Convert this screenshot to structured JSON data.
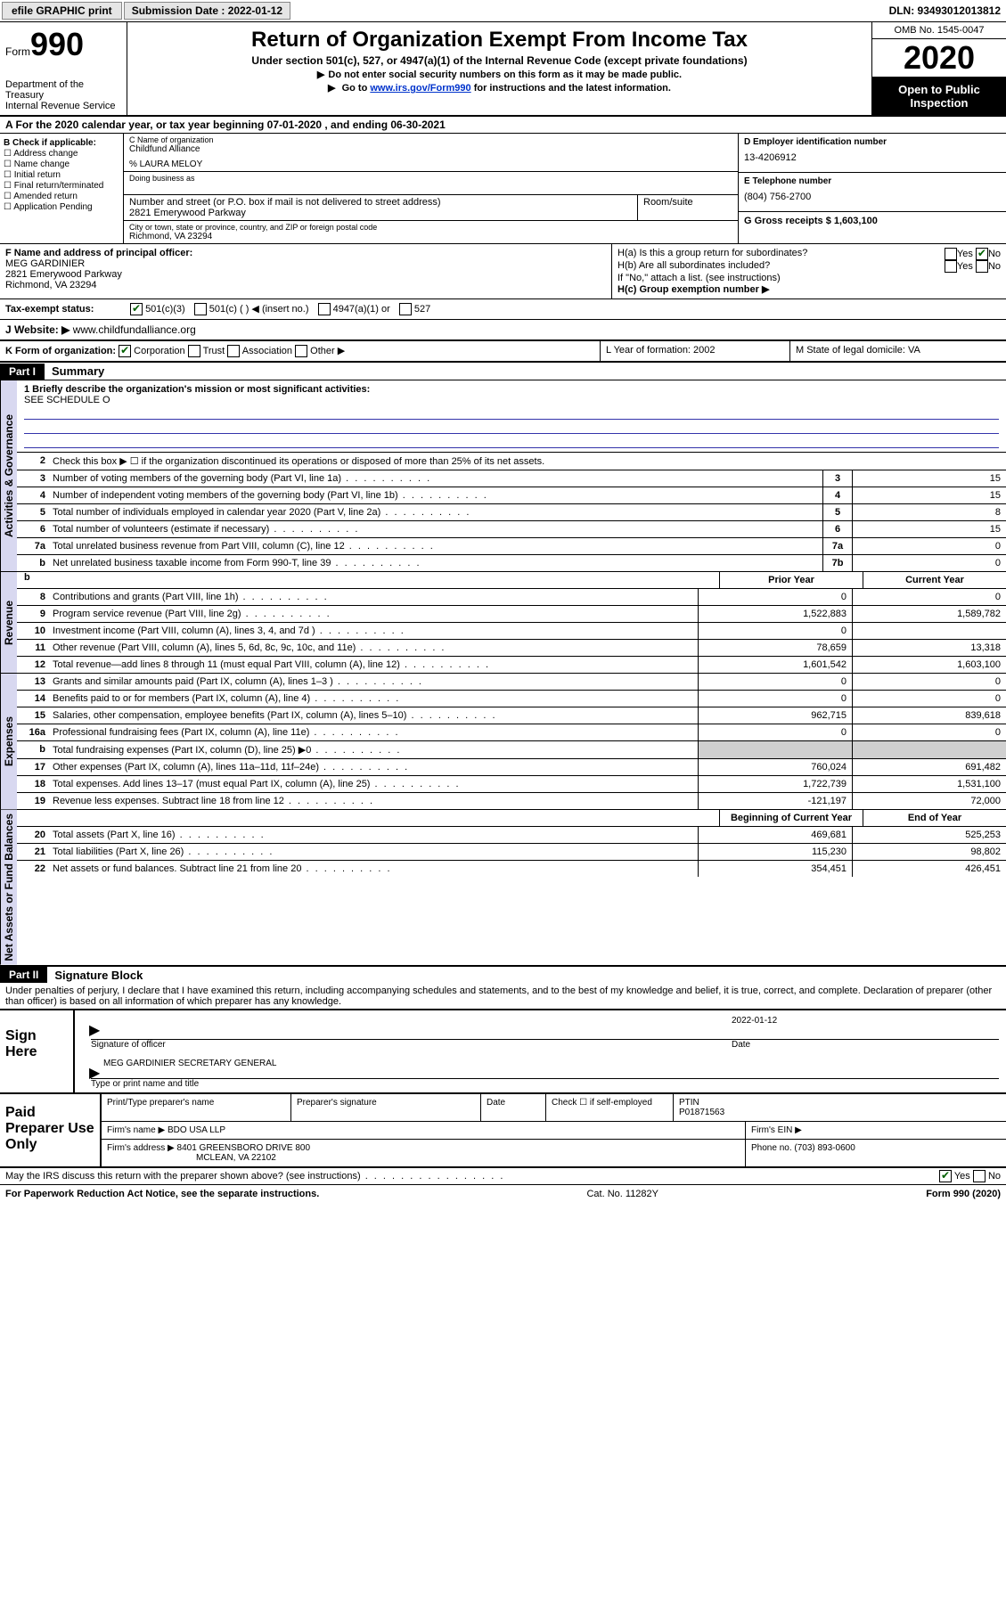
{
  "topbar": {
    "efile": "efile GRAPHIC print ",
    "subdate_label": "Submission Date : 2022-01-12",
    "dln": "DLN: 93493012013812"
  },
  "header": {
    "form_prefix": "Form",
    "form_num": "990",
    "dept": "Department of the Treasury\nInternal Revenue Service",
    "title": "Return of Organization Exempt From Income Tax",
    "sub": "Under section 501(c), 527, or 4947(a)(1) of the Internal Revenue Code (except private foundations)",
    "note1": "Do not enter social security numbers on this form as it may be made public.",
    "note2_pre": "Go to ",
    "note2_link": "www.irs.gov/Form990",
    "note2_post": " for instructions and the latest information.",
    "omb": "OMB No. 1545-0047",
    "year": "2020",
    "open": "Open to Public Inspection"
  },
  "rowA": "A For the 2020 calendar year, or tax year beginning 07-01-2020    , and ending 06-30-2021",
  "B": {
    "label": "B Check if applicable:",
    "opts": [
      "☐ Address change",
      "☐ Name change",
      "☐ Initial return",
      "☐ Final return/terminated",
      "☐ Amended return",
      "☐ Application Pending"
    ]
  },
  "C": {
    "name_lbl": "C Name of organization",
    "name": "Childfund Alliance",
    "care": "% LAURA MELOY",
    "dba_lbl": "Doing business as",
    "addr_lbl": "Number and street (or P.O. box if mail is not delivered to street address)",
    "room_lbl": "Room/suite",
    "addr": "2821 Emerywood Parkway",
    "city_lbl": "City or town, state or province, country, and ZIP or foreign postal code",
    "city": "Richmond, VA  23294"
  },
  "D": {
    "lbl": "D Employer identification number",
    "val": "13-4206912"
  },
  "E": {
    "lbl": "E Telephone number",
    "val": "(804) 756-2700"
  },
  "G": {
    "lbl": "G Gross receipts $ 1,603,100"
  },
  "F": {
    "lbl": "F  Name and address of principal officer:",
    "name": "MEG GARDINIER",
    "addr1": "2821 Emerywood Parkway",
    "addr2": "Richmond, VA  23294"
  },
  "H": {
    "a": "H(a)  Is this a group return for subordinates?",
    "a_yes": "Yes",
    "a_no": "No",
    "b": "H(b)  Are all subordinates included?",
    "b_yes": "Yes",
    "b_no": "No",
    "bnote": "If \"No,\" attach a list. (see instructions)",
    "c": "H(c)  Group exemption number ▶"
  },
  "I": {
    "lbl": "Tax-exempt status:",
    "o1": "501(c)(3)",
    "o2": "501(c) (  ) ◀ (insert no.)",
    "o3": "4947(a)(1) or",
    "o4": "527"
  },
  "J": {
    "lbl": "J  Website: ▶",
    "val": " www.childfundalliance.org"
  },
  "K": {
    "lbl": "K Form of organization:",
    "o1": "Corporation",
    "o2": "Trust",
    "o3": "Association",
    "o4": "Other ▶"
  },
  "L": {
    "lbl": "L Year of formation: 2002"
  },
  "M": {
    "lbl": "M State of legal domicile: VA"
  },
  "parts": {
    "p1": "Part I",
    "p1t": "Summary",
    "p2": "Part II",
    "p2t": "Signature Block"
  },
  "side": {
    "gov": "Activities & Governance",
    "rev": "Revenue",
    "exp": "Expenses",
    "net": "Net Assets or Fund Balances"
  },
  "summary": {
    "q1": "1  Briefly describe the organization's mission or most significant activities:",
    "q1v": "SEE SCHEDULE O",
    "q2": "Check this box ▶ ☐  if the organization discontinued its operations or disposed of more than 25% of its net assets."
  },
  "gov_lines": [
    {
      "n": "3",
      "d": "Number of voting members of the governing body (Part VI, line 1a)",
      "b": "3",
      "v": "15"
    },
    {
      "n": "4",
      "d": "Number of independent voting members of the governing body (Part VI, line 1b)",
      "b": "4",
      "v": "15"
    },
    {
      "n": "5",
      "d": "Total number of individuals employed in calendar year 2020 (Part V, line 2a)",
      "b": "5",
      "v": "8"
    },
    {
      "n": "6",
      "d": "Total number of volunteers (estimate if necessary)",
      "b": "6",
      "v": "15"
    },
    {
      "n": "7a",
      "d": "Total unrelated business revenue from Part VIII, column (C), line 12",
      "b": "7a",
      "v": "0"
    },
    {
      "n": "  b",
      "d": "Net unrelated business taxable income from Form 990-T, line 39",
      "b": "7b",
      "v": "0"
    }
  ],
  "cols": {
    "prior": "Prior Year",
    "curr": "Current Year",
    "bocy": "Beginning of Current Year",
    "eoy": "End of Year"
  },
  "rev_lines": [
    {
      "n": "8",
      "d": "Contributions and grants (Part VIII, line 1h)",
      "p": "0",
      "c": "0"
    },
    {
      "n": "9",
      "d": "Program service revenue (Part VIII, line 2g)",
      "p": "1,522,883",
      "c": "1,589,782"
    },
    {
      "n": "10",
      "d": "Investment income (Part VIII, column (A), lines 3, 4, and 7d )",
      "p": "0",
      "c": ""
    },
    {
      "n": "11",
      "d": "Other revenue (Part VIII, column (A), lines 5, 6d, 8c, 9c, 10c, and 11e)",
      "p": "78,659",
      "c": "13,318"
    },
    {
      "n": "12",
      "d": "Total revenue—add lines 8 through 11 (must equal Part VIII, column (A), line 12)",
      "p": "1,601,542",
      "c": "1,603,100"
    }
  ],
  "exp_lines": [
    {
      "n": "13",
      "d": "Grants and similar amounts paid (Part IX, column (A), lines 1–3 )",
      "p": "0",
      "c": "0"
    },
    {
      "n": "14",
      "d": "Benefits paid to or for members (Part IX, column (A), line 4)",
      "p": "0",
      "c": "0"
    },
    {
      "n": "15",
      "d": "Salaries, other compensation, employee benefits (Part IX, column (A), lines 5–10)",
      "p": "962,715",
      "c": "839,618"
    },
    {
      "n": "16a",
      "d": "Professional fundraising fees (Part IX, column (A), line 11e)",
      "p": "0",
      "c": "0"
    },
    {
      "n": "  b",
      "d": "Total fundraising expenses (Part IX, column (D), line 25) ▶0",
      "p": "",
      "c": "",
      "shade": true
    },
    {
      "n": "17",
      "d": "Other expenses (Part IX, column (A), lines 11a–11d, 11f–24e)",
      "p": "760,024",
      "c": "691,482"
    },
    {
      "n": "18",
      "d": "Total expenses. Add lines 13–17 (must equal Part IX, column (A), line 25)",
      "p": "1,722,739",
      "c": "1,531,100"
    },
    {
      "n": "19",
      "d": "Revenue less expenses. Subtract line 18 from line 12",
      "p": "-121,197",
      "c": "72,000"
    }
  ],
  "net_lines": [
    {
      "n": "20",
      "d": "Total assets (Part X, line 16)",
      "p": "469,681",
      "c": "525,253"
    },
    {
      "n": "21",
      "d": "Total liabilities (Part X, line 26)",
      "p": "115,230",
      "c": "98,802"
    },
    {
      "n": "22",
      "d": "Net assets or fund balances. Subtract line 21 from line 20",
      "p": "354,451",
      "c": "426,451"
    }
  ],
  "sig": {
    "perjury": "Under penalties of perjury, I declare that I have examined this return, including accompanying schedules and statements, and to the best of my knowledge and belief, it is true, correct, and complete. Declaration of preparer (other than officer) is based on all information of which preparer has any knowledge.",
    "sign_here": "Sign Here",
    "sig_of": "Signature of officer",
    "date_lbl": "Date",
    "date": "2022-01-12",
    "name": "MEG GARDINIER  SECRETARY GENERAL",
    "type": "Type or print name and title"
  },
  "paid": {
    "lbl": "Paid Preparer Use Only",
    "h1": "Print/Type preparer's name",
    "h2": "Preparer's signature",
    "h3": "Date",
    "check": "Check ☐  if self-employed",
    "ptin_lbl": "PTIN",
    "ptin": "P01871563",
    "firm_lbl": "Firm's name    ▶",
    "firm": "BDO USA LLP",
    "ein_lbl": "Firm's EIN ▶",
    "addr_lbl": "Firm's address ▶",
    "addr1": "8401 GREENSBORO DRIVE 800",
    "addr2": "MCLEAN, VA  22102",
    "phone_lbl": "Phone no. (703) 893-0600"
  },
  "footer": {
    "discuss": "May the IRS discuss this return with the preparer shown above? (see instructions)",
    "yes": "Yes",
    "no": "No",
    "pra": "For Paperwork Reduction Act Notice, see the separate instructions.",
    "cat": "Cat. No. 11282Y",
    "form": "Form 990 (2020)"
  }
}
